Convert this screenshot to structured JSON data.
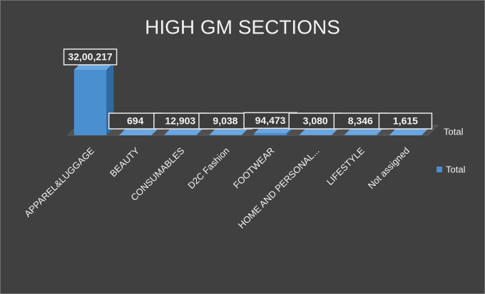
{
  "chart_data": {
    "type": "bar3d",
    "title": "HIGH GM SECTIONS",
    "categories": [
      "APPAREL&LUGGAGE",
      "BEAUTY",
      "CONSUMABLES",
      "D2C Fashion",
      "FOOTWEAR",
      "HOME AND PERSONAL...",
      "LIFESTYLE",
      "Not assigned"
    ],
    "series": [
      {
        "name": "Total",
        "color": "#4a8fd0",
        "values": [
          3200217,
          694,
          12903,
          9038,
          94473,
          3080,
          8346,
          1615
        ],
        "value_labels": [
          "32,00,217",
          "694",
          "12,903",
          "9,038",
          "94,473",
          "3,080",
          "8,346",
          "1,615"
        ]
      }
    ],
    "legend": "right"
  }
}
